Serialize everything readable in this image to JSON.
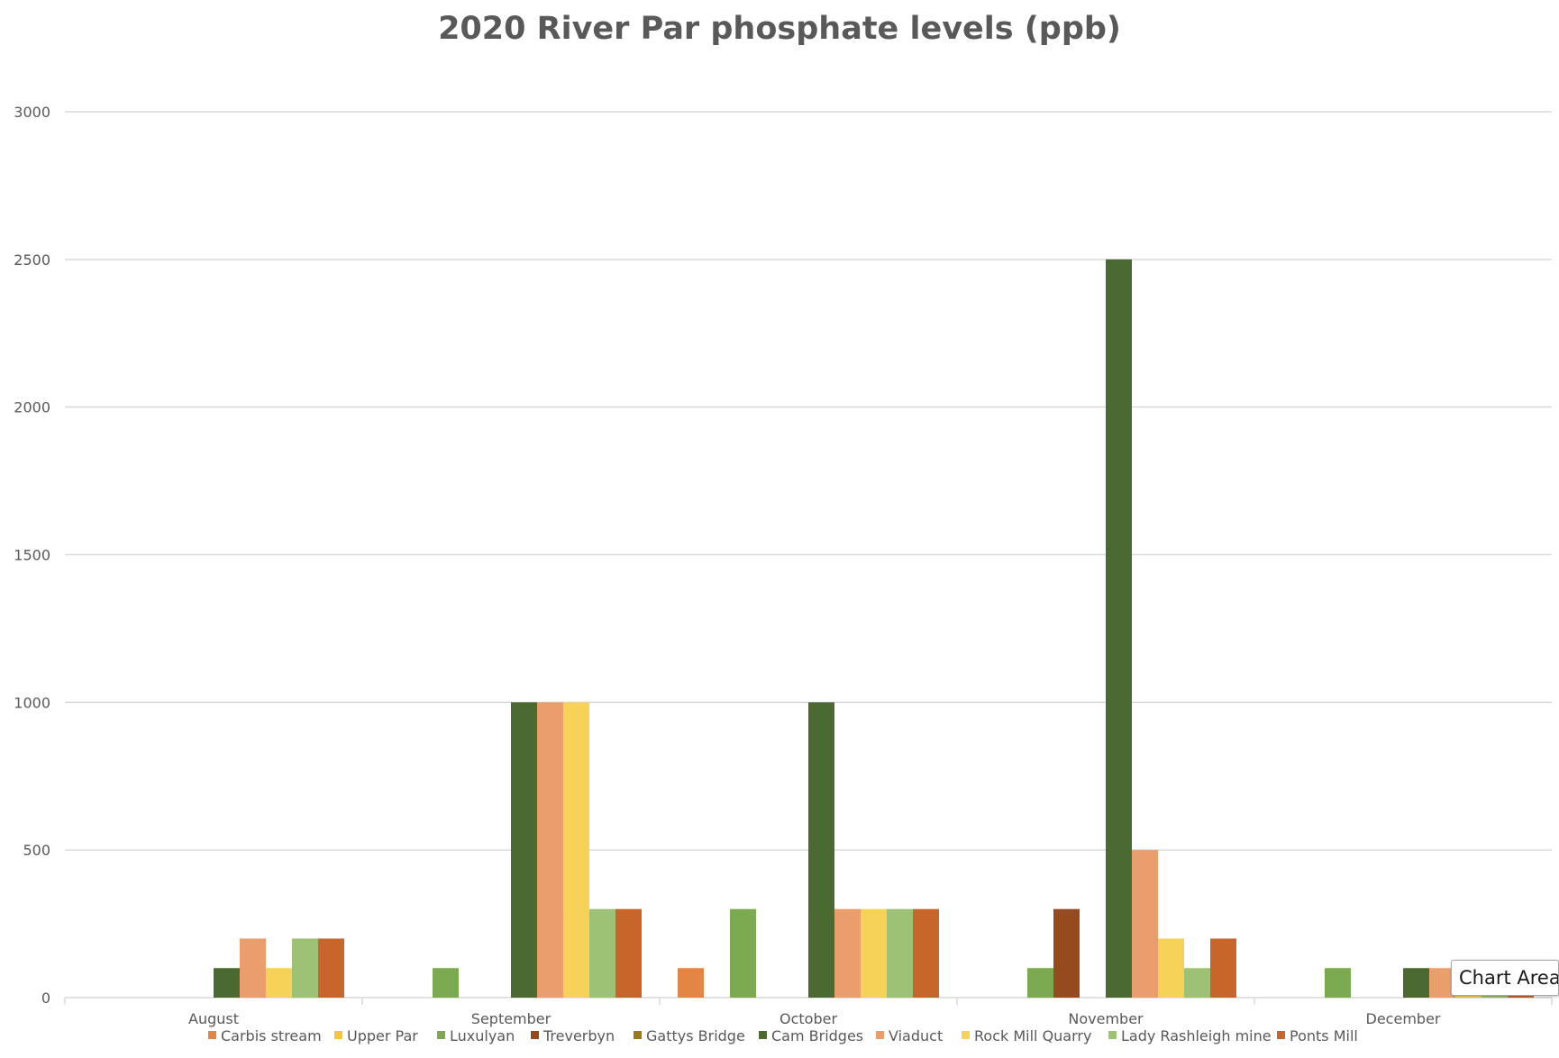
{
  "chart_data": {
    "type": "bar",
    "title": "2020 River Par phosphate levels (ppb)",
    "xlabel": "",
    "ylabel": "",
    "ylim": [
      0,
      3000
    ],
    "yticks": [
      0,
      500,
      1000,
      1500,
      2000,
      2500,
      3000
    ],
    "grid": true,
    "legend_position": "bottom",
    "categories": [
      "August",
      "September",
      "October",
      "November",
      "December"
    ],
    "series": [
      {
        "name": "Carbis stream",
        "color": "#E58544",
        "values": [
          0,
          0,
          100,
          0,
          0
        ]
      },
      {
        "name": "Upper Par",
        "color": "#F5C242",
        "values": [
          0,
          0,
          0,
          0,
          0
        ]
      },
      {
        "name": "Luxulyan",
        "color": "#7BAA50",
        "values": [
          0,
          100,
          300,
          100,
          100
        ]
      },
      {
        "name": "Treverbyn",
        "color": "#964B1F",
        "values": [
          0,
          0,
          0,
          300,
          0
        ]
      },
      {
        "name": "Gattys Bridge",
        "color": "#9A7A14",
        "values": [
          0,
          0,
          0,
          0,
          0
        ]
      },
      {
        "name": "Cam Bridges",
        "color": "#4B6A31",
        "values": [
          100,
          1000,
          1000,
          2500,
          100
        ]
      },
      {
        "name": "Viaduct",
        "color": "#EA9E6B",
        "values": [
          200,
          1000,
          300,
          500,
          100
        ]
      },
      {
        "name": "Rock Mill Quarry",
        "color": "#F7D258",
        "values": [
          100,
          1000,
          300,
          200,
          100
        ]
      },
      {
        "name": "Lady Rashleigh mine",
        "color": "#9DC275",
        "values": [
          200,
          300,
          300,
          100,
          100
        ]
      },
      {
        "name": "Ponts Mill",
        "color": "#C8652B",
        "values": [
          200,
          300,
          300,
          200,
          100
        ]
      }
    ]
  },
  "tooltip": {
    "text": "Chart Area"
  }
}
